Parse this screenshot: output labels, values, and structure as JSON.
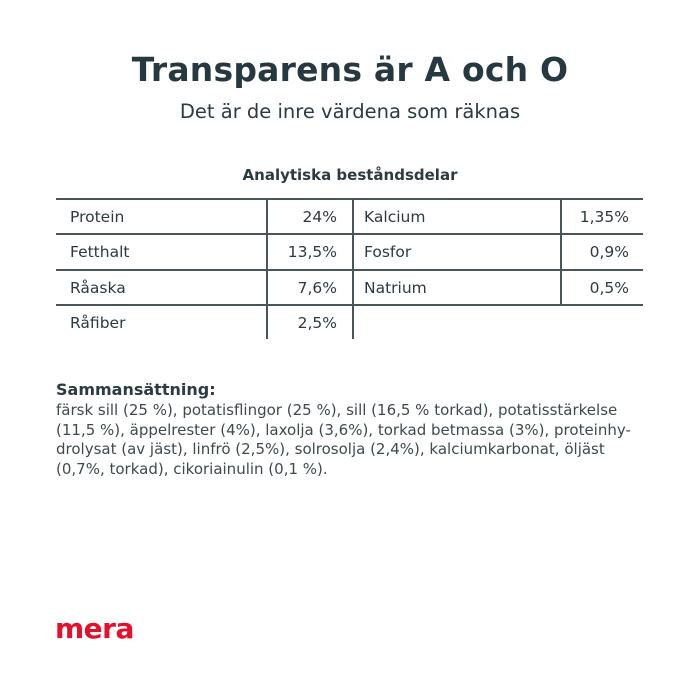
{
  "header": {
    "title": "Transparens är A och O",
    "subtitle": "Det är de inre värdena som räknas"
  },
  "table": {
    "title": "Analytiska beståndsdelar",
    "left": [
      {
        "label": "Protein",
        "value": "24%"
      },
      {
        "label": "Fetthalt",
        "value": "13,5%"
      },
      {
        "label": "Råaska",
        "value": "7,6%"
      },
      {
        "label": "Råfiber",
        "value": "2,5%"
      }
    ],
    "right": [
      {
        "label": "Kalcium",
        "value": "1,35%"
      },
      {
        "label": "Fosfor",
        "value": "0,9%"
      },
      {
        "label": "Natrium",
        "value": "0,5%"
      }
    ]
  },
  "composition": {
    "title": "Sammansättning:",
    "text": "färsk sill (25 %), potatisflingor (25 %), sill (16,5 % torkad), potatisstärkelse (11,5 %), äppelrester (4%), laxolja (3,6%), torkad betmassa (3%), proteinhy-drolysat (av jäst), linfrö (2,5%), solrosolja (2,4%), kalciumkarbonat, öljäst (0,7%, torkad), cikoriainulin (0,1 %)."
  },
  "logo": {
    "text": "mera",
    "color": "#e4112d"
  }
}
